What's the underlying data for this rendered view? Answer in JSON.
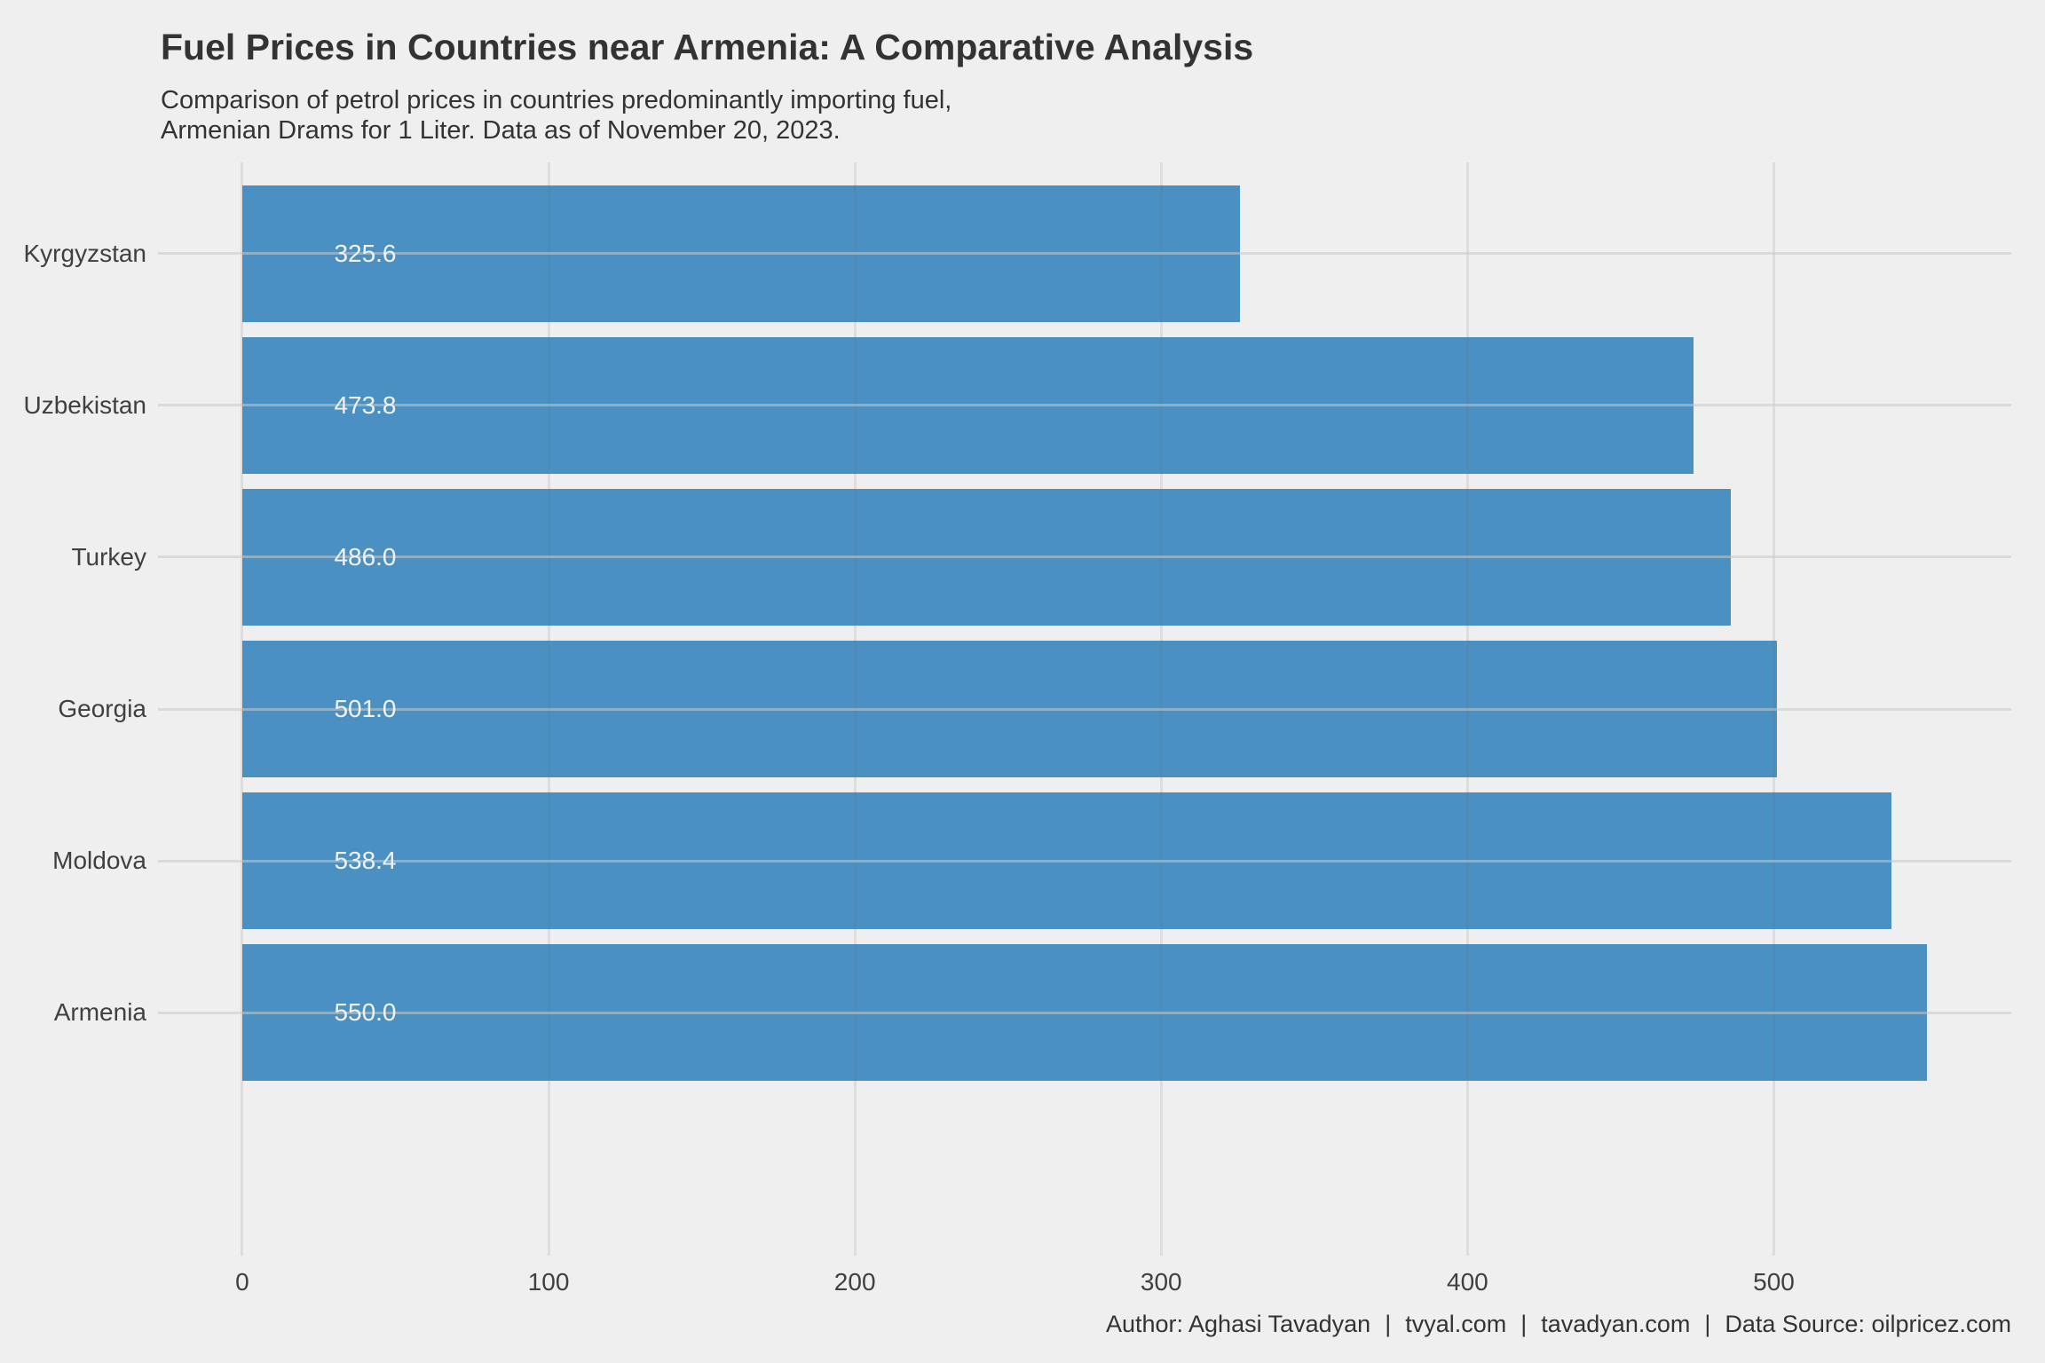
{
  "figure": {
    "background_color": "#EFEFEF",
    "title_color": "#333333",
    "axis_text_color": "#404040"
  },
  "chart_data": {
    "type": "bar",
    "orientation": "horizontal",
    "title": "Fuel Prices in Countries near Armenia: A Comparative Analysis",
    "subtitle_lines": [
      "Comparison of petrol prices in countries predominantly importing fuel,",
      "Armenian Drams for 1 Liter. Data as of November 20, 2023."
    ],
    "categories": [
      "Kyrgyzstan",
      "Uzbekistan",
      "Turkey",
      "Georgia",
      "Moldova",
      "Armenia"
    ],
    "values": [
      325.6,
      473.8,
      486.0,
      501.0,
      538.4,
      550.0
    ],
    "bar_labels": [
      "325.6",
      "473.8",
      "486.0",
      "501.0",
      "538.4",
      "550.0"
    ],
    "x_ticks": [
      0,
      100,
      200,
      300,
      400,
      500
    ],
    "xlim": [
      -27.5,
      577.5
    ],
    "xlabel": "",
    "ylabel": "",
    "grid": true,
    "legend": false,
    "bar_color": "#4A90C2",
    "bar_label_color": "#F2F2F2"
  },
  "footer": {
    "author": "Author: Aghasi Tavadyan",
    "site1": "tvyal.com",
    "site2": "tavadyan.com",
    "source": "Data Source: oilpricez.com",
    "separator": "|"
  }
}
